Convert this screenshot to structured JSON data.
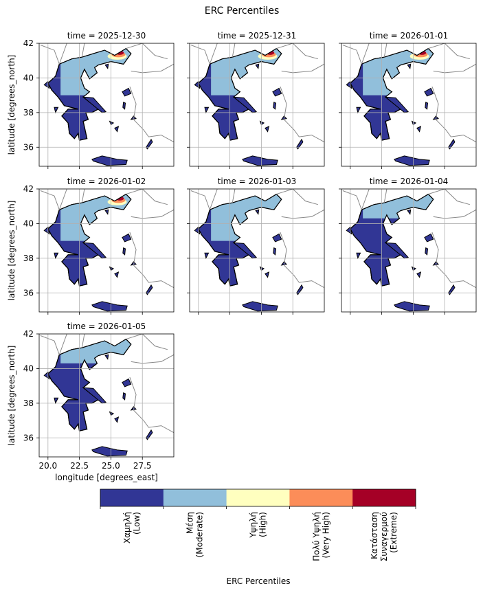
{
  "chart_data": {
    "type": "map-facet",
    "title": "ERC Percentiles",
    "facets": [
      "time = 2025-12-30",
      "time = 2025-12-31",
      "time = 2026-01-01",
      "time = 2026-01-02",
      "time = 2026-01-03",
      "time = 2026-01-04",
      "time = 2026-01-05"
    ],
    "xlabel": "longitude [degrees_east]",
    "ylabel": "latitude [degrees_north]",
    "xlim": [
      19.3,
      30.0
    ],
    "ylim": [
      34.9,
      42.0
    ],
    "xticks": [
      {
        "value": 20,
        "label": "20.0"
      },
      22.5,
      {
        "value": 25,
        "label": "25.0"
      },
      27.5
    ],
    "yticks": [
      36,
      38,
      40,
      42
    ],
    "grid": true,
    "colorbar": {
      "label": "ERC Percentiles",
      "categories": [
        "Χαμηλή\n(Low)",
        "Μέση\n(Moderate)",
        "Υψηλή\n(High)",
        "Πολύ Υψηλή\n(Very High)",
        "Κατάσταση\nΣυναγερμού\n(Extreme)"
      ],
      "colors": [
        "#313695",
        "#91bfdb",
        "#ffffbf",
        "#fc8d59",
        "#a50026"
      ]
    }
  }
}
